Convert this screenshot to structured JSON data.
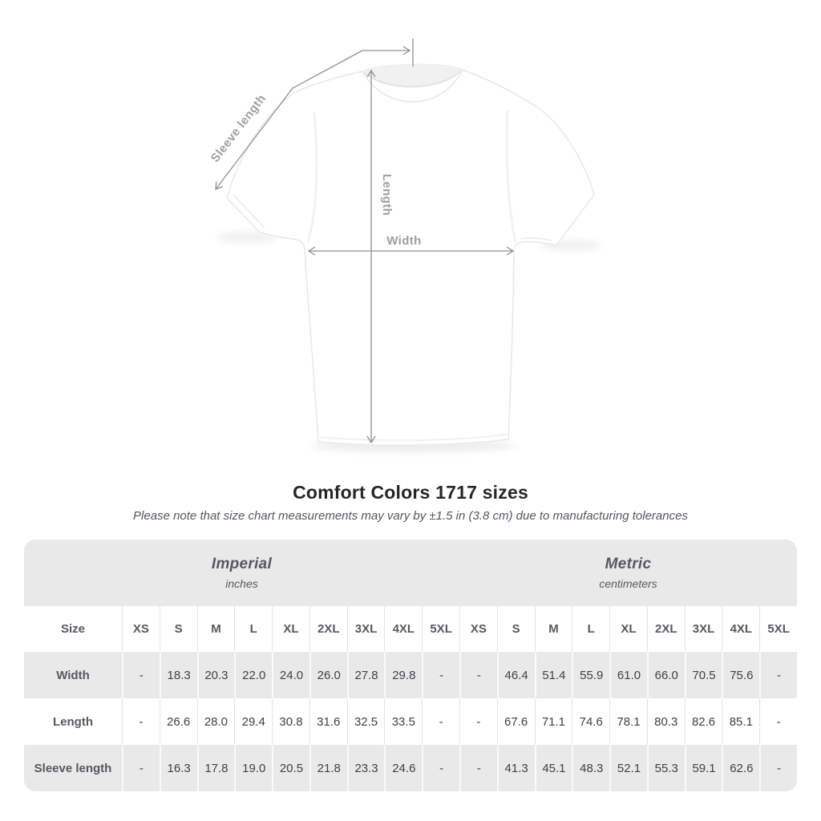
{
  "diagram": {
    "sleeve_length_label": "Sleeve length",
    "length_label": "Length",
    "width_label": "Width"
  },
  "chart_data": {
    "type": "table",
    "title": "Comfort Colors 1717 sizes",
    "tolerance_note": "Please note that size chart measurements may vary by ±1.5 in (3.8 cm) due to manufacturing tolerances",
    "size_column_header": "Size",
    "sizes": [
      "XS",
      "S",
      "M",
      "L",
      "XL",
      "2XL",
      "3XL",
      "4XL",
      "5XL"
    ],
    "groups": [
      {
        "label": "Imperial",
        "units": "inches"
      },
      {
        "label": "Metric",
        "units": "centimeters"
      }
    ],
    "rows": [
      {
        "label": "Width",
        "imperial": [
          "-",
          "18.3",
          "20.3",
          "22.0",
          "24.0",
          "26.0",
          "27.8",
          "29.8",
          "-"
        ],
        "metric": [
          "-",
          "46.4",
          "51.4",
          "55.9",
          "61.0",
          "66.0",
          "70.5",
          "75.6",
          "-"
        ]
      },
      {
        "label": "Length",
        "imperial": [
          "-",
          "26.6",
          "28.0",
          "29.4",
          "30.8",
          "31.6",
          "32.5",
          "33.5",
          "-"
        ],
        "metric": [
          "-",
          "67.6",
          "71.1",
          "74.6",
          "78.1",
          "80.3",
          "82.6",
          "85.1",
          "-"
        ]
      },
      {
        "label": "Sleeve length",
        "imperial": [
          "-",
          "16.3",
          "17.8",
          "19.0",
          "20.5",
          "21.8",
          "23.3",
          "24.6",
          "-"
        ],
        "metric": [
          "-",
          "41.3",
          "45.1",
          "48.3",
          "52.1",
          "55.3",
          "59.1",
          "62.6",
          "-"
        ]
      }
    ]
  },
  "colors": {
    "table_gray": "#e9e9e9",
    "separator_light": "#e3e3e3",
    "heading_text": "#242628",
    "table_text_dark": "#3e4145",
    "table_text_gray": "#55595e",
    "diagram_line": "#8d9194",
    "diagram_label": "#9aa0a4"
  }
}
